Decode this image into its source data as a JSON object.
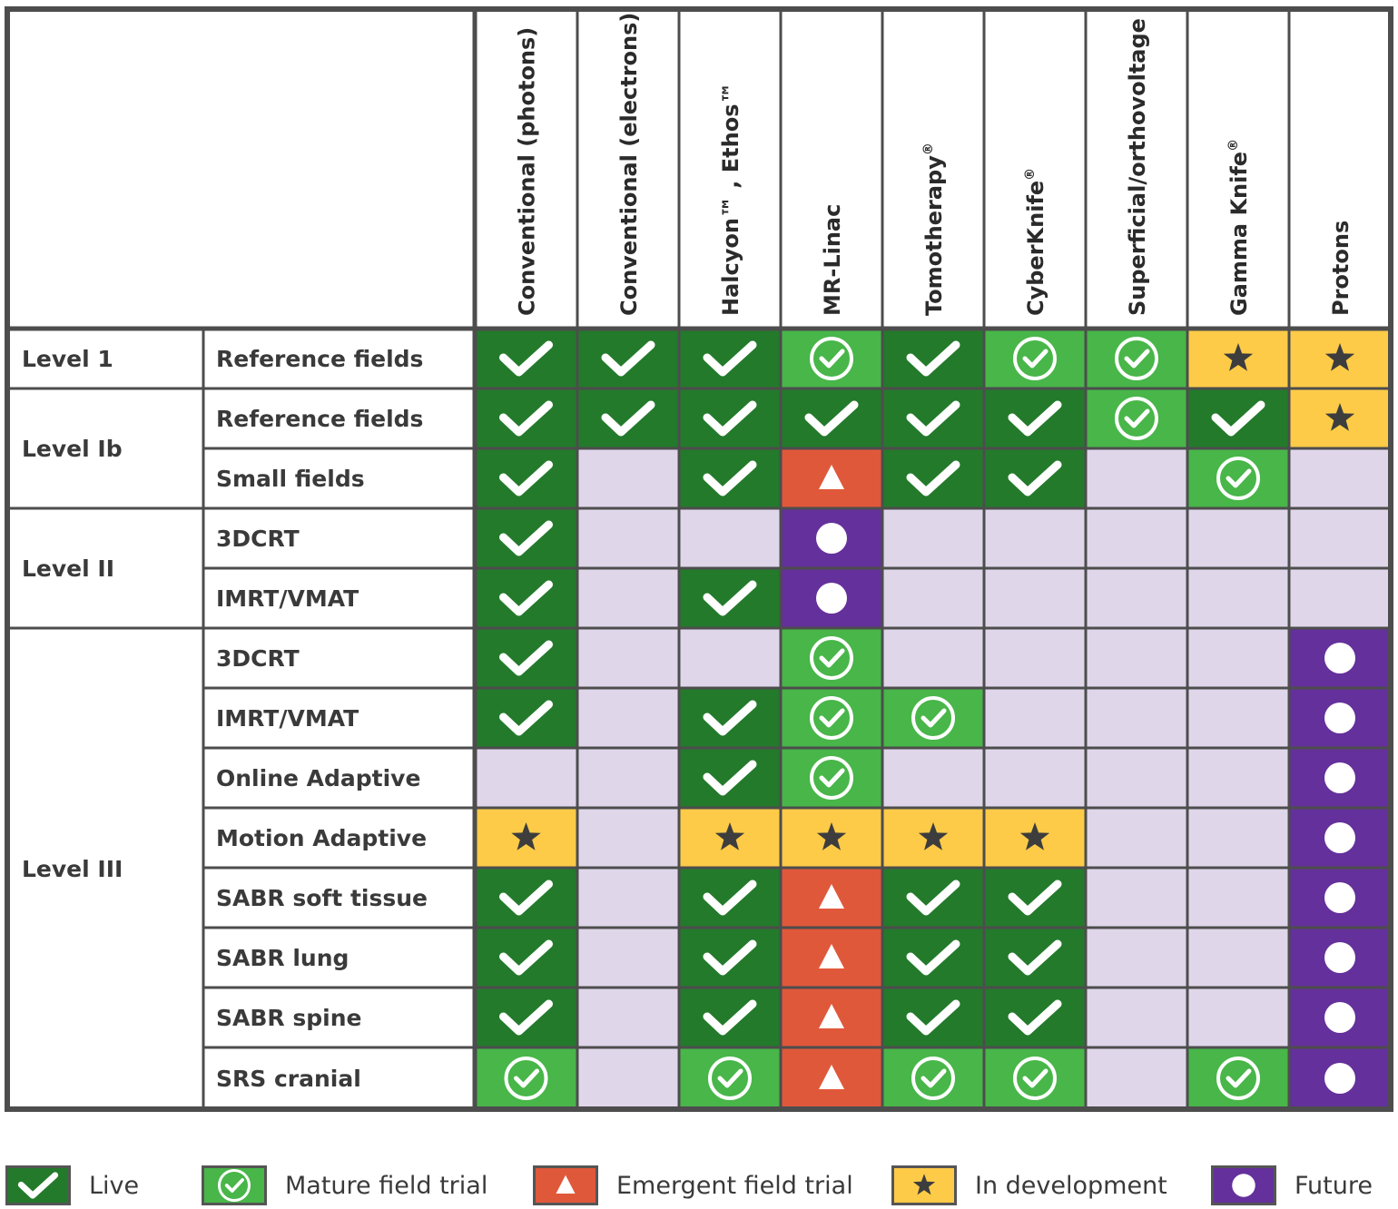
{
  "columns": [
    {
      "label": "Conventional (photons)",
      "sup": ""
    },
    {
      "label": "Conventional (electrons)",
      "sup": ""
    },
    {
      "label": "Halcyon™ , Ethos™",
      "sup": ""
    },
    {
      "label": "MR-Linac",
      "sup": ""
    },
    {
      "label": "Tomotherapy",
      "sup": "®"
    },
    {
      "label": "CyberKnife",
      "sup": "®"
    },
    {
      "label": "Superficial/orthovoltage",
      "sup": ""
    },
    {
      "label": "Gamma Knife",
      "sup": "®"
    },
    {
      "label": "Protons",
      "sup": ""
    }
  ],
  "levels": [
    {
      "label": "Level 1",
      "rows": 1
    },
    {
      "label": "Level Ib",
      "rows": 2
    },
    {
      "label": "Level II",
      "rows": 2
    },
    {
      "label": "Level III",
      "rows": 8
    }
  ],
  "rows": [
    {
      "label": "Reference fields",
      "cells": [
        "live",
        "live",
        "live",
        "mature",
        "live",
        "mature",
        "mature",
        "dev",
        "dev"
      ]
    },
    {
      "label": "Reference fields",
      "cells": [
        "live",
        "live",
        "live",
        "live",
        "live",
        "live",
        "mature",
        "live",
        "dev"
      ]
    },
    {
      "label": "Small fields",
      "cells": [
        "live",
        "none",
        "live",
        "emergent",
        "live",
        "live",
        "none",
        "mature",
        "none"
      ]
    },
    {
      "label": "3DCRT",
      "cells": [
        "live",
        "none",
        "none",
        "future",
        "none",
        "none",
        "none",
        "none",
        "none"
      ]
    },
    {
      "label": "IMRT/VMAT",
      "cells": [
        "live",
        "none",
        "live",
        "future",
        "none",
        "none",
        "none",
        "none",
        "none"
      ]
    },
    {
      "label": "3DCRT",
      "cells": [
        "live",
        "none",
        "none",
        "mature",
        "none",
        "none",
        "none",
        "none",
        "future"
      ]
    },
    {
      "label": "IMRT/VMAT",
      "cells": [
        "live",
        "none",
        "live",
        "mature",
        "mature",
        "none",
        "none",
        "none",
        "future"
      ]
    },
    {
      "label": "Online Adaptive",
      "cells": [
        "none",
        "none",
        "live",
        "mature",
        "none",
        "none",
        "none",
        "none",
        "future"
      ]
    },
    {
      "label": "Motion Adaptive",
      "cells": [
        "dev",
        "none",
        "dev",
        "dev",
        "dev",
        "dev",
        "none",
        "none",
        "future"
      ]
    },
    {
      "label": "SABR soft tissue",
      "cells": [
        "live",
        "none",
        "live",
        "emergent",
        "live",
        "live",
        "none",
        "none",
        "future"
      ]
    },
    {
      "label": "SABR lung",
      "cells": [
        "live",
        "none",
        "live",
        "emergent",
        "live",
        "live",
        "none",
        "none",
        "future"
      ]
    },
    {
      "label": "SABR spine",
      "cells": [
        "live",
        "none",
        "live",
        "emergent",
        "live",
        "live",
        "none",
        "none",
        "future"
      ]
    },
    {
      "label": "SRS cranial",
      "cells": [
        "mature",
        "none",
        "mature",
        "emergent",
        "mature",
        "mature",
        "none",
        "mature",
        "future"
      ]
    }
  ],
  "status_colors": {
    "live": "#237a2b",
    "mature": "#48b649",
    "emergent": "#e0583a",
    "dev": "#fdcb48",
    "future": "#64309b",
    "none": "#e0d6ea"
  },
  "status_icons": {
    "live": "check-icon",
    "mature": "circled-check-icon",
    "emergent": "triangle-icon",
    "dev": "star-icon",
    "future": "dot-icon",
    "none": ""
  },
  "legend": [
    {
      "key": "live",
      "label": "Live"
    },
    {
      "key": "mature",
      "label": "Mature field trial"
    },
    {
      "key": "emergent",
      "label": "Emergent field trial"
    },
    {
      "key": "dev",
      "label": "In development"
    },
    {
      "key": "future",
      "label": "Future"
    }
  ]
}
